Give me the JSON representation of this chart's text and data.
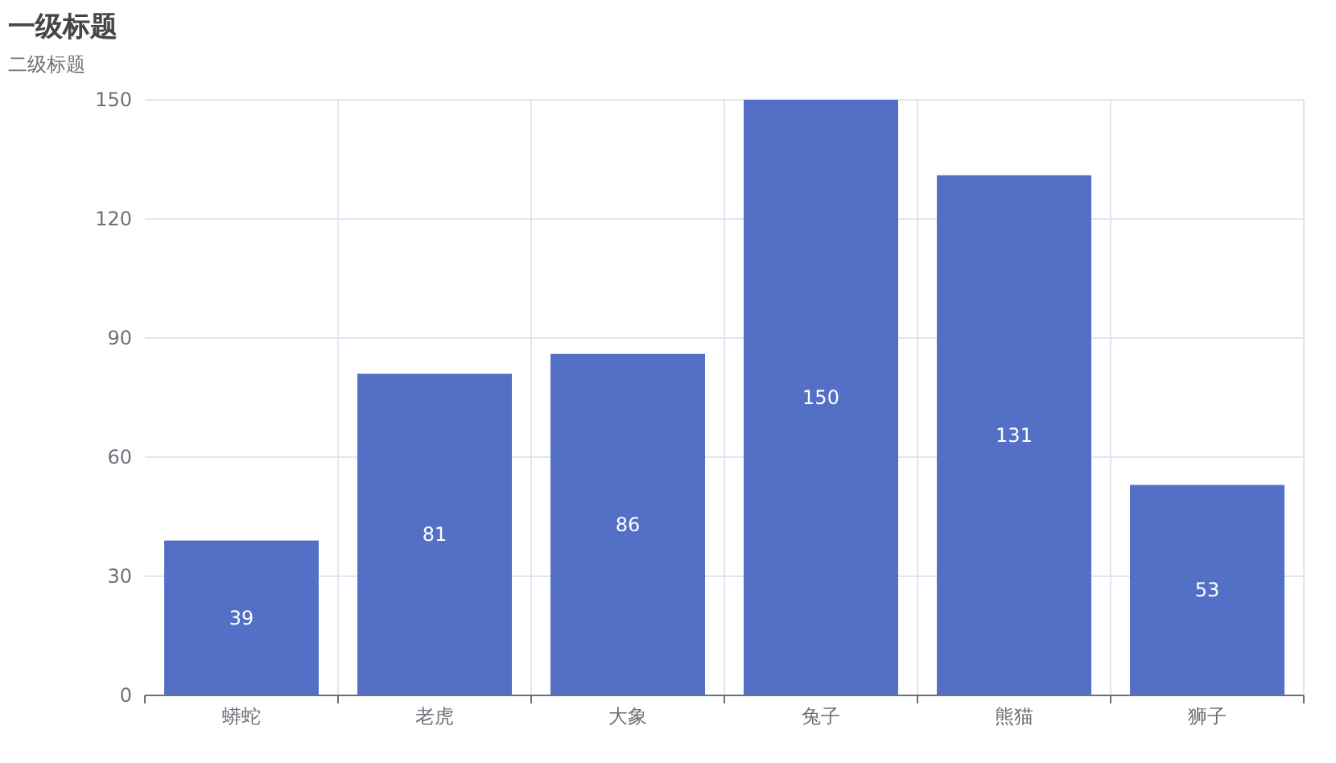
{
  "chart_data": {
    "type": "bar",
    "title": "一级标题",
    "subtitle": "二级标题",
    "categories": [
      "蟒蛇",
      "老虎",
      "大象",
      "兔子",
      "熊猫",
      "狮子"
    ],
    "values": [
      39,
      81,
      86,
      150,
      131,
      53
    ],
    "color": "#5470c6",
    "ylim": [
      0,
      150
    ],
    "yticks": [
      0,
      30,
      60,
      90,
      120,
      150
    ],
    "grid": true,
    "data_labels": true
  }
}
